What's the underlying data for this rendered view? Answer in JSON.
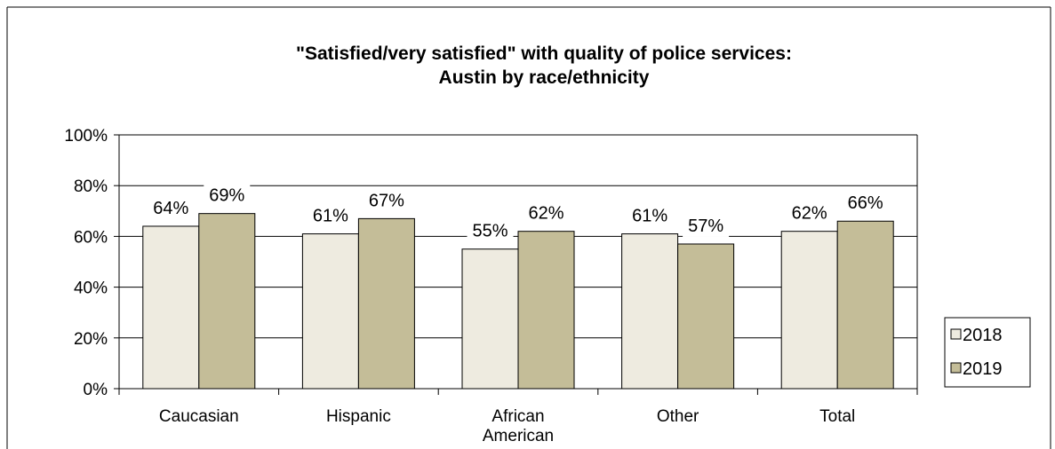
{
  "chart_data": {
    "type": "bar",
    "title": "\"Satisfied/very satisfied\" with quality of police services:",
    "subtitle": "Austin by race/ethnicity",
    "categories": [
      "Caucasian",
      "Hispanic",
      "African American",
      "Other",
      "Total"
    ],
    "series": [
      {
        "name": "2018",
        "values": [
          64,
          61,
          55,
          61,
          62
        ],
        "color": "#eeebe0"
      },
      {
        "name": "2019",
        "values": [
          69,
          67,
          62,
          57,
          66
        ],
        "color": "#c4bd98"
      }
    ],
    "yticks": [
      "0%",
      "20%",
      "40%",
      "60%",
      "80%",
      "100%"
    ],
    "ylim": [
      0,
      100
    ],
    "unit": "%",
    "grid": true,
    "legend_position": "right"
  }
}
